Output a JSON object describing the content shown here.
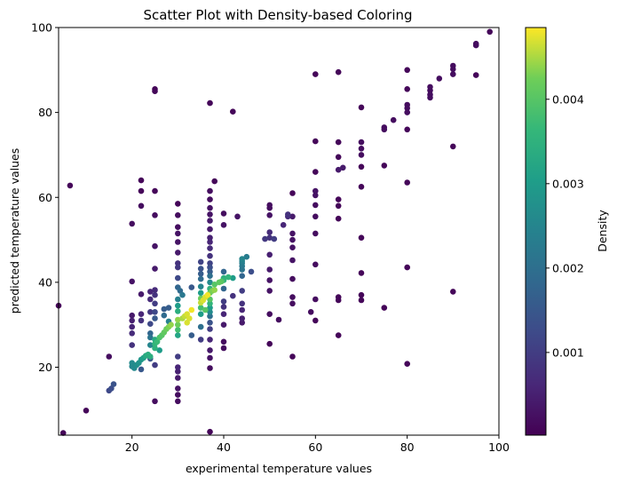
{
  "chart_data": {
    "type": "scatter",
    "title": "Scatter Plot with Density-based Coloring",
    "xlabel": "experimental temperature values",
    "ylabel": "predicted temperature values",
    "xlim": [
      4,
      100
    ],
    "ylim": [
      4,
      100
    ],
    "xticks": [
      "20",
      "40",
      "60",
      "80",
      "100"
    ],
    "yticks": [
      "20",
      "40",
      "60",
      "80",
      "100"
    ],
    "grid": false,
    "colormap": "viridis",
    "colorbar": {
      "label": "Density",
      "range": [
        2e-05,
        0.00485
      ],
      "ticks": [
        "0.001",
        "0.002",
        "0.003",
        "0.004"
      ]
    },
    "points": [
      [
        4,
        34.5,
        0.0001
      ],
      [
        5,
        4.5,
        0.0001
      ],
      [
        6.5,
        62.8,
        0.0001
      ],
      [
        10,
        9.8,
        0.0001
      ],
      [
        15,
        22.5,
        0.0002
      ],
      [
        15,
        14.5,
        0.0012
      ],
      [
        15.5,
        15,
        0.0013
      ],
      [
        16,
        16,
        0.0014
      ],
      [
        20,
        53.8,
        0.0002
      ],
      [
        20,
        40.2,
        0.0003
      ],
      [
        20,
        32.2,
        0.0004
      ],
      [
        20,
        31,
        0.0005
      ],
      [
        20,
        29.5,
        0.0006
      ],
      [
        20,
        28,
        0.0007
      ],
      [
        20,
        25.2,
        0.0008
      ],
      [
        20,
        21,
        0.0026
      ],
      [
        20,
        20.2,
        0.0025
      ],
      [
        20.5,
        19.8,
        0.0026
      ],
      [
        21,
        20.5,
        0.0027
      ],
      [
        21.5,
        21,
        0.0028
      ],
      [
        22,
        21.8,
        0.0029
      ],
      [
        22,
        64,
        0.0001
      ],
      [
        22,
        61.5,
        0.0001
      ],
      [
        22,
        58,
        0.0002
      ],
      [
        22,
        37.2,
        0.0004
      ],
      [
        22,
        32.5,
        0.0006
      ],
      [
        22,
        31,
        0.0008
      ],
      [
        22,
        19.5,
        0.0015
      ],
      [
        22.5,
        22.2,
        0.0031
      ],
      [
        23,
        22.7,
        0.0033
      ],
      [
        23.5,
        23,
        0.0034
      ],
      [
        24,
        22.5,
        0.0034
      ],
      [
        24,
        37.8,
        0.0006
      ],
      [
        24,
        36,
        0.0007
      ],
      [
        24,
        33,
        0.0009
      ],
      [
        24,
        30.2,
        0.0012
      ],
      [
        24,
        28,
        0.0018
      ],
      [
        24,
        27,
        0.0021
      ],
      [
        24,
        25.2,
        0.0025
      ],
      [
        24,
        22,
        0.0015
      ],
      [
        25,
        85.5,
        0.0001
      ],
      [
        25,
        85,
        0.0001
      ],
      [
        25,
        61.5,
        0.0001
      ],
      [
        25,
        55.8,
        0.0002
      ],
      [
        25,
        48.5,
        0.0003
      ],
      [
        25,
        43.2,
        0.0004
      ],
      [
        25,
        38.2,
        0.0007
      ],
      [
        25,
        37,
        0.0008
      ],
      [
        25,
        35,
        0.001
      ],
      [
        25,
        33,
        0.0012
      ],
      [
        25,
        31.5,
        0.0015
      ],
      [
        25,
        26.5,
        0.0033
      ],
      [
        25,
        25.5,
        0.0036
      ],
      [
        25,
        24.5,
        0.0035
      ],
      [
        25,
        20.5,
        0.001
      ],
      [
        25,
        12,
        0.0002
      ],
      [
        25.5,
        26,
        0.0037
      ],
      [
        26,
        27,
        0.0039
      ],
      [
        26,
        24,
        0.003
      ],
      [
        26.5,
        27.5,
        0.004
      ],
      [
        27,
        28.2,
        0.0041
      ],
      [
        27,
        33.7,
        0.0016
      ],
      [
        27,
        32.2,
        0.0019
      ],
      [
        27.5,
        29,
        0.0042
      ],
      [
        28,
        29.5,
        0.0043
      ],
      [
        28,
        34,
        0.0016
      ],
      [
        28,
        30.8,
        0.0024
      ],
      [
        28.5,
        30,
        0.0044
      ],
      [
        30,
        58.5,
        0.0001
      ],
      [
        30,
        55.8,
        0.0002
      ],
      [
        30,
        53,
        0.0002
      ],
      [
        30,
        51.5,
        0.0003
      ],
      [
        30,
        49.5,
        0.0003
      ],
      [
        30,
        47,
        0.0004
      ],
      [
        30,
        44.5,
        0.0008
      ],
      [
        30,
        43.5,
        0.0009
      ],
      [
        30,
        41,
        0.0012
      ],
      [
        30,
        38.8,
        0.0018
      ],
      [
        30,
        36,
        0.0024
      ],
      [
        30,
        34.5,
        0.003
      ],
      [
        30,
        33.2,
        0.0034
      ],
      [
        30,
        31.2,
        0.0044
      ],
      [
        30,
        30,
        0.0042
      ],
      [
        30,
        28.8,
        0.0038
      ],
      [
        30,
        27.5,
        0.0032
      ],
      [
        30,
        22.5,
        0.001
      ],
      [
        30,
        20,
        0.0006
      ],
      [
        30,
        19,
        0.0005
      ],
      [
        30,
        17.5,
        0.0004
      ],
      [
        30,
        15,
        0.0003
      ],
      [
        30,
        13.5,
        0.0002
      ],
      [
        30,
        12,
        0.0002
      ],
      [
        30.5,
        38,
        0.0019
      ],
      [
        31,
        31.5,
        0.0045
      ],
      [
        31,
        37,
        0.0022
      ],
      [
        31.5,
        32,
        0.0046
      ],
      [
        32,
        30.5,
        0.0047
      ],
      [
        32,
        32.5,
        0.0047
      ],
      [
        32.5,
        31.5,
        0.0047
      ],
      [
        33,
        33.5,
        0.0048
      ],
      [
        33,
        38.8,
        0.0015
      ],
      [
        33,
        27.5,
        0.0016
      ],
      [
        35,
        44.8,
        0.0011
      ],
      [
        35,
        43.2,
        0.0014
      ],
      [
        35,
        42,
        0.0016
      ],
      [
        35,
        40.8,
        0.0019
      ],
      [
        35,
        39,
        0.0025
      ],
      [
        35,
        37.5,
        0.003
      ],
      [
        35,
        36.2,
        0.0042
      ],
      [
        35,
        35.2,
        0.0046
      ],
      [
        35,
        34,
        0.0038
      ],
      [
        35,
        32.5,
        0.003
      ],
      [
        35,
        29.5,
        0.002
      ],
      [
        35,
        26.5,
        0.001
      ],
      [
        35.5,
        35.8,
        0.0047
      ],
      [
        36,
        36.5,
        0.0047
      ],
      [
        36,
        33.5,
        0.004
      ],
      [
        36.5,
        37,
        0.0048
      ],
      [
        37,
        82.2,
        0.0001
      ],
      [
        37,
        61.5,
        0.0002
      ],
      [
        37,
        59.5,
        0.0002
      ],
      [
        37,
        57.5,
        0.0003
      ],
      [
        37,
        56,
        0.0003
      ],
      [
        37,
        54.5,
        0.0004
      ],
      [
        37,
        52.5,
        0.0004
      ],
      [
        37,
        50.5,
        0.0005
      ],
      [
        37,
        49.5,
        0.0006
      ],
      [
        37,
        48,
        0.0007
      ],
      [
        37,
        46.2,
        0.0008
      ],
      [
        37,
        44.5,
        0.0011
      ],
      [
        37,
        43.5,
        0.0013
      ],
      [
        37,
        42.5,
        0.0016
      ],
      [
        37,
        41.5,
        0.002
      ],
      [
        37,
        40,
        0.0026
      ],
      [
        37,
        38.5,
        0.0035
      ],
      [
        37,
        37.5,
        0.0042
      ],
      [
        37,
        36,
        0.004
      ],
      [
        37,
        35,
        0.0036
      ],
      [
        37,
        34,
        0.003
      ],
      [
        37,
        33,
        0.0026
      ],
      [
        37,
        32,
        0.002
      ],
      [
        37,
        30.5,
        0.0014
      ],
      [
        37,
        29,
        0.001
      ],
      [
        37,
        26.5,
        0.0006
      ],
      [
        37,
        24,
        0.0004
      ],
      [
        37,
        22.2,
        0.0003
      ],
      [
        37,
        19.8,
        0.0002
      ],
      [
        37,
        4.8,
        0.0001
      ],
      [
        37.5,
        38,
        0.0043
      ],
      [
        38,
        63.8,
        0.0001
      ],
      [
        38,
        39.5,
        0.004
      ],
      [
        38,
        38.2,
        0.0044
      ],
      [
        39,
        40,
        0.0041
      ],
      [
        39.5,
        40.2,
        0.004
      ],
      [
        40,
        56.2,
        0.0002
      ],
      [
        40,
        53.5,
        0.0003
      ],
      [
        40,
        42.5,
        0.0018
      ],
      [
        40,
        41,
        0.0035
      ],
      [
        40,
        40.5,
        0.0036
      ],
      [
        40,
        38.5,
        0.0018
      ],
      [
        40,
        35.5,
        0.001
      ],
      [
        40,
        34.2,
        0.0008
      ],
      [
        40,
        32.5,
        0.0006
      ],
      [
        40,
        30,
        0.0004
      ],
      [
        40,
        26,
        0.0002
      ],
      [
        40,
        24.5,
        0.0002
      ],
      [
        41,
        41.2,
        0.0036
      ],
      [
        42,
        80.2,
        0.0001
      ],
      [
        42,
        41,
        0.003
      ],
      [
        42,
        36.8,
        0.0008
      ],
      [
        43,
        55.5,
        0.0003
      ],
      [
        44,
        43.8,
        0.0022
      ],
      [
        44,
        44.5,
        0.0023
      ],
      [
        44,
        45,
        0.0024
      ],
      [
        44,
        45.5,
        0.0025
      ],
      [
        44,
        43,
        0.0021
      ],
      [
        44,
        41.5,
        0.0018
      ],
      [
        44,
        38,
        0.001
      ],
      [
        44,
        35,
        0.0008
      ],
      [
        44,
        33.5,
        0.0006
      ],
      [
        44,
        31.5,
        0.0005
      ],
      [
        44,
        30.5,
        0.0004
      ],
      [
        45,
        46,
        0.0023
      ],
      [
        46,
        42.5,
        0.0013
      ],
      [
        50,
        58.2,
        0.0002
      ],
      [
        50,
        57.5,
        0.0002
      ],
      [
        50,
        55.8,
        0.0003
      ],
      [
        50,
        51.8,
        0.0007
      ],
      [
        50,
        50.5,
        0.0008
      ],
      [
        50,
        46.5,
        0.0005
      ],
      [
        50,
        43,
        0.0004
      ],
      [
        50,
        40.5,
        0.0003
      ],
      [
        50,
        38,
        0.0003
      ],
      [
        50,
        32.5,
        0.0002
      ],
      [
        50,
        25.5,
        0.0001
      ],
      [
        49,
        50.2,
        0.0009
      ],
      [
        51,
        50.2,
        0.001
      ],
      [
        52,
        31.2,
        0.0002
      ],
      [
        53,
        53.5,
        0.0006
      ],
      [
        54,
        55.5,
        0.0007
      ],
      [
        54,
        56,
        0.0008
      ],
      [
        55,
        61,
        0.0001
      ],
      [
        55,
        55.5,
        0.0004
      ],
      [
        55,
        51.5,
        0.0003
      ],
      [
        55,
        50,
        0.0003
      ],
      [
        55,
        48.2,
        0.0003
      ],
      [
        55,
        45.2,
        0.0003
      ],
      [
        55,
        40.8,
        0.0002
      ],
      [
        55,
        36.5,
        0.0002
      ],
      [
        55,
        35,
        0.0002
      ],
      [
        55,
        22.5,
        0.0001
      ],
      [
        59,
        33,
        0.0002
      ],
      [
        60,
        89,
        0.0001
      ],
      [
        60,
        73.2,
        0.0001
      ],
      [
        60,
        66,
        0.0001
      ],
      [
        60,
        61.5,
        0.0003
      ],
      [
        60,
        60.5,
        0.0003
      ],
      [
        60,
        58.2,
        0.0002
      ],
      [
        60,
        55.5,
        0.0002
      ],
      [
        60,
        51.5,
        0.0002
      ],
      [
        60,
        44.2,
        0.0002
      ],
      [
        60,
        36,
        0.0002
      ],
      [
        60,
        31,
        0.0001
      ],
      [
        65,
        89.5,
        0.0001
      ],
      [
        65,
        73,
        0.0001
      ],
      [
        65,
        69.5,
        0.0001
      ],
      [
        65,
        66.5,
        0.0004
      ],
      [
        65,
        59.5,
        0.0001
      ],
      [
        65,
        58,
        0.0001
      ],
      [
        65,
        55,
        0.0001
      ],
      [
        65,
        36.5,
        0.0001
      ],
      [
        65,
        35.8,
        0.0001
      ],
      [
        65,
        27.5,
        0.0001
      ],
      [
        66,
        67,
        0.0004
      ],
      [
        70,
        81.2,
        0.0001
      ],
      [
        70,
        73,
        0.0002
      ],
      [
        70,
        71.5,
        0.0002
      ],
      [
        70,
        70,
        0.0002
      ],
      [
        70,
        67.2,
        0.0001
      ],
      [
        70,
        62.5,
        0.0001
      ],
      [
        70,
        50.5,
        0.0001
      ],
      [
        70,
        42.2,
        0.0001
      ],
      [
        70,
        37,
        0.0001
      ],
      [
        70,
        35.8,
        0.0001
      ],
      [
        75,
        76.5,
        0.0002
      ],
      [
        75,
        76,
        0.0002
      ],
      [
        75,
        67.5,
        0.0001
      ],
      [
        75,
        34,
        0.0001
      ],
      [
        77,
        78.2,
        0.0002
      ],
      [
        80,
        90,
        0.0001
      ],
      [
        80,
        85.5,
        0.0001
      ],
      [
        80,
        81.8,
        0.0002
      ],
      [
        80,
        81,
        0.0002
      ],
      [
        80,
        80,
        0.0002
      ],
      [
        80,
        76,
        0.0001
      ],
      [
        80,
        63.5,
        0.0001
      ],
      [
        80,
        43.5,
        0.0001
      ],
      [
        80,
        20.8,
        0.0001
      ],
      [
        85,
        86,
        0.0002
      ],
      [
        85,
        85.2,
        0.0002
      ],
      [
        85,
        84.2,
        0.0002
      ],
      [
        85,
        83.5,
        0.0002
      ],
      [
        87,
        88,
        0.0002
      ],
      [
        90,
        91,
        0.0002
      ],
      [
        90,
        90.2,
        0.0002
      ],
      [
        90,
        89,
        0.0002
      ],
      [
        90,
        72,
        0.0001
      ],
      [
        90,
        37.8,
        0.0001
      ],
      [
        95,
        96.2,
        0.0002
      ],
      [
        95,
        95.8,
        0.0002
      ],
      [
        95,
        88.8,
        0.0001
      ],
      [
        98,
        99,
        0.0001
      ]
    ]
  }
}
